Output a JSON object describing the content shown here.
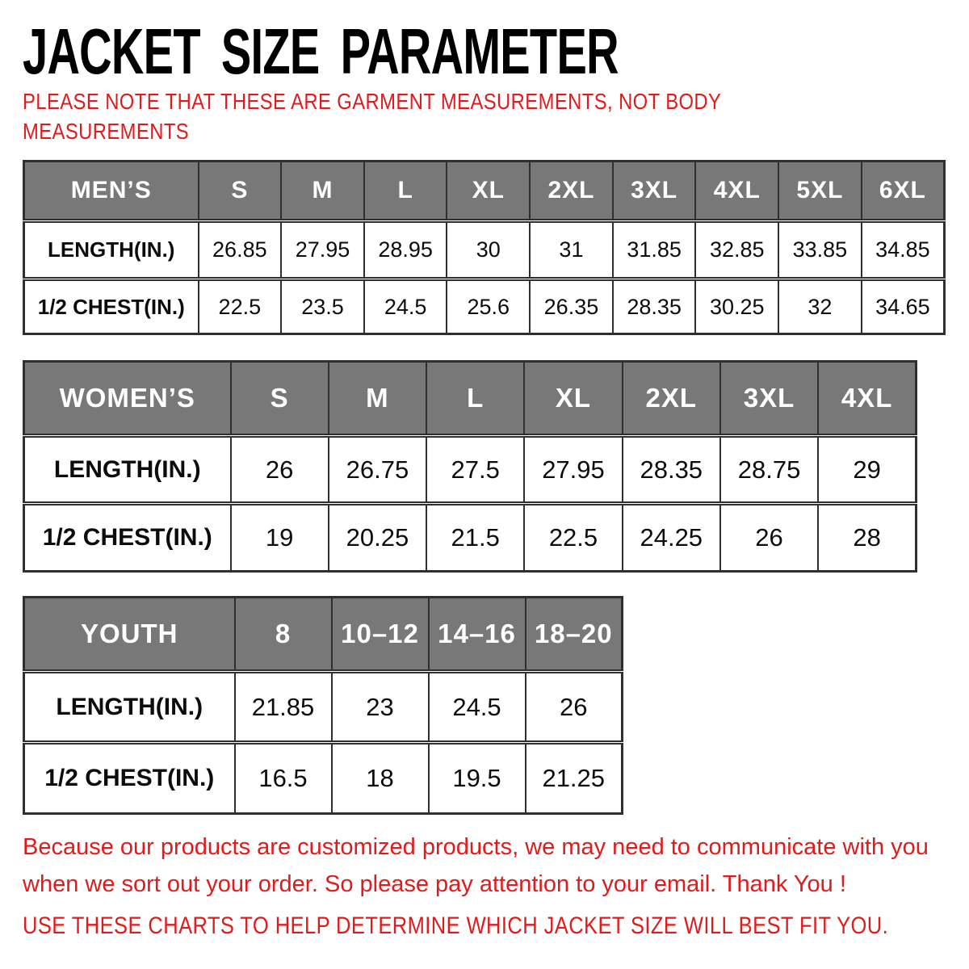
{
  "page": {
    "title": "JACKET SIZE PARAMETER",
    "note": "PLEASE NOTE THAT THESE ARE GARMENT MEASUREMENTS, NOT BODY MEASUREMENTS",
    "footer_line1": "Because our products are customized products, we may need to communicate with you when we sort out your order. So please pay attention to your email. Thank You !",
    "footer_line2": "USE THESE CHARTS TO HELP DETERMINE WHICH JACKET SIZE WILL BEST FIT YOU."
  },
  "colors": {
    "header_bg": "#787878",
    "border_col": "#2f2f2f",
    "accent_red": "#e11b1c",
    "text_black": "#0c0c0c"
  },
  "tables": [
    {
      "name": "mens",
      "header": [
        "MEN’S",
        "S",
        "M",
        "L",
        "XL",
        "2XL",
        "3XL",
        "4XL",
        "5XL",
        "6XL"
      ],
      "rows": [
        {
          "label": "LENGTH(IN.)",
          "values": [
            "26.85",
            "27.95",
            "28.95",
            "30",
            "31",
            "31.85",
            "32.85",
            "33.85",
            "34.85"
          ]
        },
        {
          "label": "1/2 CHEST(IN.)",
          "values": [
            "22.5",
            "23.5",
            "24.5",
            "25.6",
            "26.35",
            "28.35",
            "30.25",
            "32",
            "34.65"
          ]
        }
      ]
    },
    {
      "name": "womens",
      "header": [
        "WOMEN’S",
        "S",
        "M",
        "L",
        "XL",
        "2XL",
        "3XL",
        "4XL"
      ],
      "rows": [
        {
          "label": "LENGTH(IN.)",
          "values": [
            "26",
            "26.75",
            "27.5",
            "27.95",
            "28.35",
            "28.75",
            "29"
          ]
        },
        {
          "label": "1/2 CHEST(IN.)",
          "values": [
            "19",
            "20.25",
            "21.5",
            "22.5",
            "24.25",
            "26",
            "28"
          ]
        }
      ]
    },
    {
      "name": "youth",
      "header": [
        "YOUTH",
        "8",
        "10–12",
        "14–16",
        "18–20"
      ],
      "rows": [
        {
          "label": "LENGTH(IN.)",
          "values": [
            "21.85",
            "23",
            "24.5",
            "26"
          ]
        },
        {
          "label": "1/2 CHEST(IN.)",
          "values": [
            "16.5",
            "18",
            "19.5",
            "21.25"
          ]
        }
      ]
    }
  ]
}
